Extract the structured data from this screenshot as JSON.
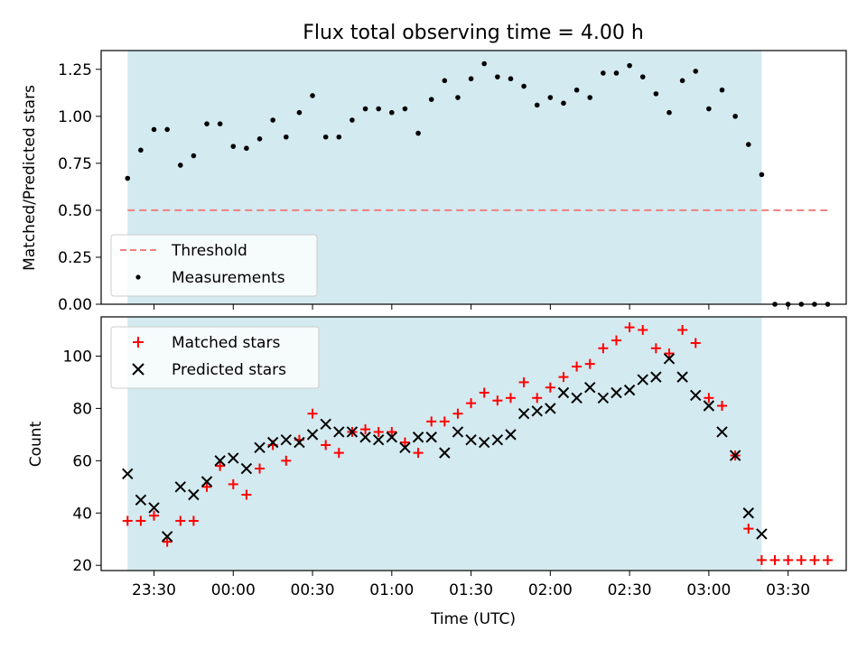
{
  "figure": {
    "title": "Flux total observing time = 4.00 h",
    "xlabel": "Time (UTC)"
  },
  "colors": {
    "observing_band": "#d3eaf0",
    "threshold": "#f08080",
    "measurements": "#000000",
    "matched": "#ff0000",
    "predicted": "#000000"
  },
  "chart_data": [
    {
      "type": "scatter",
      "ylabel": "Matched/Predicted stars",
      "ylim": [
        0,
        1.35
      ],
      "yticks": [
        "0.00",
        "0.25",
        "0.50",
        "0.75",
        "1.00",
        "1.25"
      ],
      "ytick_values": [
        0,
        0.25,
        0.5,
        0.75,
        1.0,
        1.25
      ],
      "xlim": [
        "23:10",
        "03:52"
      ],
      "observing_window": [
        "23:20",
        "03:20"
      ],
      "grid": false,
      "legend_position": "lower-left",
      "series": [
        {
          "name": "Threshold",
          "type": "line",
          "x": [
            "23:20",
            "03:45"
          ],
          "y": [
            0.5,
            0.5
          ]
        },
        {
          "name": "Measurements",
          "type": "scatter",
          "x": [
            "23:20",
            "23:25",
            "23:30",
            "23:35",
            "23:40",
            "23:45",
            "23:50",
            "23:55",
            "00:00",
            "00:05",
            "00:10",
            "00:15",
            "00:20",
            "00:25",
            "00:30",
            "00:35",
            "00:40",
            "00:45",
            "00:50",
            "00:55",
            "01:00",
            "01:05",
            "01:10",
            "01:15",
            "01:20",
            "01:25",
            "01:30",
            "01:35",
            "01:40",
            "01:45",
            "01:50",
            "01:55",
            "02:00",
            "02:05",
            "02:10",
            "02:15",
            "02:20",
            "02:25",
            "02:30",
            "02:35",
            "02:40",
            "02:45",
            "02:50",
            "02:55",
            "03:00",
            "03:05",
            "03:10",
            "03:15",
            "03:20",
            "03:25",
            "03:30",
            "03:35",
            "03:40",
            "03:45"
          ],
          "y": [
            0.67,
            0.82,
            0.93,
            0.93,
            0.74,
            0.79,
            0.96,
            0.96,
            0.84,
            0.83,
            0.88,
            0.98,
            0.89,
            1.02,
            1.11,
            0.89,
            0.89,
            0.98,
            1.04,
            1.04,
            1.02,
            1.04,
            0.91,
            1.09,
            1.19,
            1.1,
            1.2,
            1.28,
            1.21,
            1.2,
            1.16,
            1.06,
            1.1,
            1.07,
            1.14,
            1.1,
            1.23,
            1.23,
            1.27,
            1.21,
            1.12,
            1.02,
            1.19,
            1.24,
            1.04,
            1.14,
            1.0,
            0.85,
            0.69,
            0,
            0,
            0,
            0,
            0
          ]
        }
      ]
    },
    {
      "type": "scatter",
      "ylabel": "Count",
      "ylim": [
        18,
        115
      ],
      "yticks": [
        "20",
        "40",
        "60",
        "80",
        "100"
      ],
      "ytick_values": [
        20,
        40,
        60,
        80,
        100
      ],
      "xlim": [
        "23:10",
        "03:52"
      ],
      "xticks": [
        "23:30",
        "00:00",
        "00:30",
        "01:00",
        "01:30",
        "02:00",
        "02:30",
        "03:00",
        "03:30"
      ],
      "observing_window": [
        "23:20",
        "03:20"
      ],
      "grid": false,
      "legend_position": "upper-left",
      "series": [
        {
          "name": "Matched stars",
          "marker": "+",
          "x": [
            "23:20",
            "23:25",
            "23:30",
            "23:35",
            "23:40",
            "23:45",
            "23:50",
            "23:55",
            "00:00",
            "00:05",
            "00:10",
            "00:15",
            "00:20",
            "00:25",
            "00:30",
            "00:35",
            "00:40",
            "00:45",
            "00:50",
            "00:55",
            "01:00",
            "01:05",
            "01:10",
            "01:15",
            "01:20",
            "01:25",
            "01:30",
            "01:35",
            "01:40",
            "01:45",
            "01:50",
            "01:55",
            "02:00",
            "02:05",
            "02:10",
            "02:15",
            "02:20",
            "02:25",
            "02:30",
            "02:35",
            "02:40",
            "02:45",
            "02:50",
            "02:55",
            "03:00",
            "03:05",
            "03:10",
            "03:15",
            "03:20",
            "03:25",
            "03:30",
            "03:35",
            "03:40",
            "03:45"
          ],
          "y": [
            37,
            37,
            39,
            29,
            37,
            37,
            50,
            58,
            51,
            47,
            57,
            66,
            60,
            68,
            78,
            66,
            63,
            71,
            72,
            71,
            71,
            67,
            63,
            75,
            75,
            78,
            82,
            86,
            83,
            84,
            90,
            84,
            88,
            92,
            96,
            97,
            103,
            106,
            111,
            110,
            103,
            101,
            110,
            105,
            84,
            81,
            62,
            34,
            22,
            22,
            22,
            22,
            22,
            22
          ]
        },
        {
          "name": "Predicted stars",
          "marker": "x",
          "x": [
            "23:20",
            "23:25",
            "23:30",
            "23:35",
            "23:40",
            "23:45",
            "23:50",
            "23:55",
            "00:00",
            "00:05",
            "00:10",
            "00:15",
            "00:20",
            "00:25",
            "00:30",
            "00:35",
            "00:40",
            "00:45",
            "00:50",
            "00:55",
            "01:00",
            "01:05",
            "01:10",
            "01:15",
            "01:20",
            "01:25",
            "01:30",
            "01:35",
            "01:40",
            "01:45",
            "01:50",
            "01:55",
            "02:00",
            "02:05",
            "02:10",
            "02:15",
            "02:20",
            "02:25",
            "02:30",
            "02:35",
            "02:40",
            "02:45",
            "02:50",
            "02:55",
            "03:00",
            "03:05",
            "03:10",
            "03:15",
            "03:20"
          ],
          "y": [
            55,
            45,
            42,
            31,
            50,
            47,
            52,
            60,
            61,
            57,
            65,
            67,
            68,
            67,
            70,
            74,
            71,
            71,
            69,
            68,
            69,
            65,
            69,
            69,
            63,
            71,
            68,
            67,
            68,
            70,
            78,
            79,
            80,
            86,
            84,
            88,
            84,
            86,
            87,
            91,
            92,
            99,
            92,
            85,
            81,
            71,
            62,
            40,
            32
          ]
        }
      ]
    }
  ]
}
